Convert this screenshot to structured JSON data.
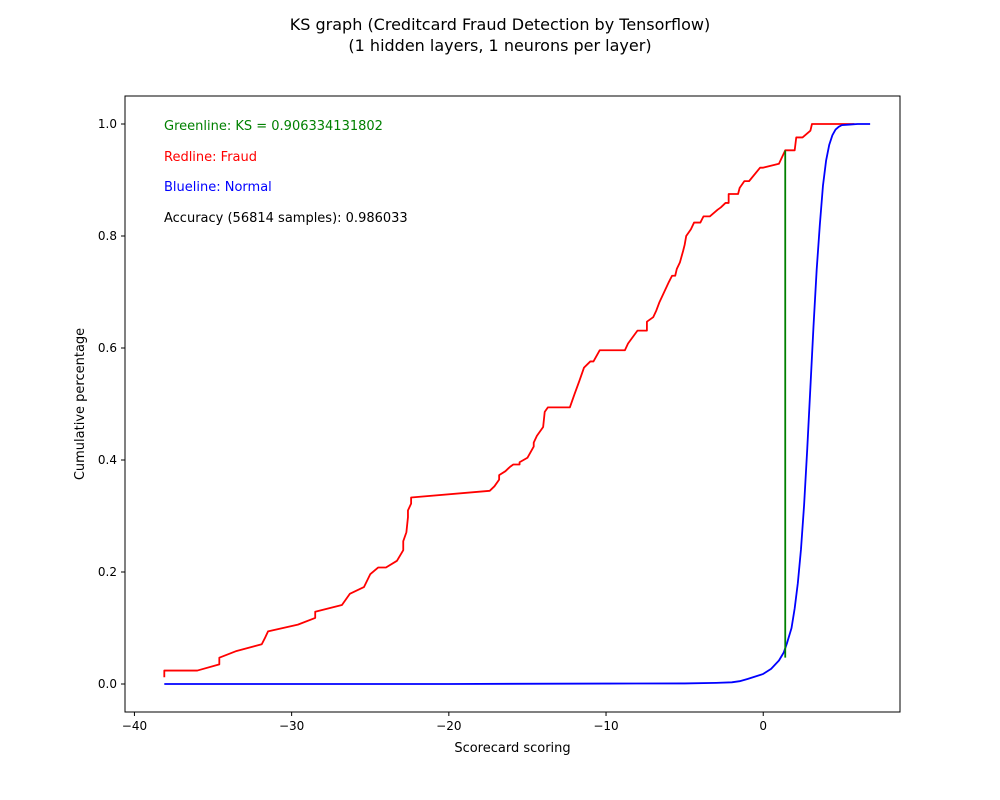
{
  "chart_data": {
    "type": "line",
    "title": "KS graph (Creditcard Fraud Detection by Tensorflow)",
    "subtitle": "(1 hidden layers, 1 neurons per layer)",
    "xlabel": "Scorecard scoring",
    "ylabel": "Cumulative percentage",
    "xlim": [
      -40.6,
      8.7
    ],
    "ylim": [
      -0.05,
      1.05
    ],
    "xticks": [
      -40,
      -30,
      -20,
      -10,
      0
    ],
    "xtick_labels": [
      "−40",
      "−30",
      "−20",
      "−10",
      "0"
    ],
    "yticks": [
      0.0,
      0.2,
      0.4,
      0.6,
      0.8,
      1.0
    ],
    "ytick_labels": [
      "0.0",
      "0.2",
      "0.4",
      "0.6",
      "0.8",
      "1.0"
    ],
    "grid": false,
    "annotations": [
      {
        "text": "Greenline: KS = 0.906334131802",
        "color": "#008000"
      },
      {
        "text": "Redline: Fraud",
        "color": "#ff0000"
      },
      {
        "text": "Blueline: Normal",
        "color": "#0000ff"
      },
      {
        "text": "Accuracy (56814 samples): 0.986033",
        "color": "#000000"
      }
    ],
    "series": [
      {
        "color": "#ff0000",
        "x": [
          -38.1,
          -38.1,
          -36,
          -34.6,
          -34.6,
          -33.5,
          -31.9,
          -31.7,
          -31.5,
          -29.6,
          -28.5,
          -28.5,
          -26.8,
          -26.3,
          -25.4,
          -25.0,
          -24.5,
          -24.0,
          -23.3,
          -22.9,
          -22.9,
          -22.7,
          -22.6,
          -22.6,
          -22.4,
          -22.4,
          -17.4,
          -17.1,
          -16.8,
          -16.8,
          -16.4,
          -16.1,
          -15.9,
          -15.5,
          -15.5,
          -15.0,
          -14.6,
          -14.6,
          -14.4,
          -14.0,
          -13.9,
          -13.7,
          -13.5,
          -13.5,
          -13.3,
          -12.3,
          -12.0,
          -11.7,
          -11.4,
          -11.0,
          -10.8,
          -10.4,
          -10.4,
          -8.8,
          -8.6,
          -8.0,
          -7.4,
          -7.4,
          -7.0,
          -6.8,
          -6.6,
          -6.4,
          -6.2,
          -6.0,
          -5.8,
          -5.6,
          -5.5,
          -5.3,
          -5.1,
          -5.0,
          -4.9,
          -4.8,
          -4.6,
          -4.4,
          -4.2,
          -4.0,
          -3.8,
          -3.6,
          -3.4,
          -3.4,
          -2.9,
          -2.7,
          -2.4,
          -2.2,
          -2.2,
          -1.6,
          -1.5,
          -1.2,
          -1.0,
          -0.9,
          -0.2,
          0.0,
          1.0,
          1.2,
          1.4,
          2.0,
          2.1,
          2.5,
          3.0,
          3.1,
          4.9,
          5.8
        ],
        "y": [
          0.012,
          0.024,
          0.024,
          0.035,
          0.047,
          0.059,
          0.071,
          0.082,
          0.094,
          0.106,
          0.118,
          0.129,
          0.141,
          0.161,
          0.173,
          0.196,
          0.208,
          0.208,
          0.22,
          0.239,
          0.255,
          0.271,
          0.298,
          0.31,
          0.322,
          0.333,
          0.345,
          0.353,
          0.365,
          0.373,
          0.38,
          0.388,
          0.392,
          0.392,
          0.396,
          0.404,
          0.424,
          0.431,
          0.443,
          0.459,
          0.486,
          0.494,
          0.494,
          0.494,
          0.494,
          0.494,
          0.518,
          0.541,
          0.565,
          0.576,
          0.576,
          0.596,
          0.596,
          0.596,
          0.608,
          0.631,
          0.631,
          0.647,
          0.655,
          0.667,
          0.682,
          0.694,
          0.706,
          0.718,
          0.729,
          0.729,
          0.741,
          0.753,
          0.773,
          0.784,
          0.8,
          0.804,
          0.812,
          0.824,
          0.824,
          0.824,
          0.835,
          0.835,
          0.835,
          0.835,
          0.847,
          0.851,
          0.859,
          0.859,
          0.875,
          0.875,
          0.886,
          0.898,
          0.898,
          0.898,
          0.922,
          0.922,
          0.929,
          0.941,
          0.953,
          0.953,
          0.976,
          0.976,
          0.988,
          1.0,
          1.0,
          1.0
        ]
      },
      {
        "color": "#0000ff",
        "x": [
          -38.1,
          -30,
          -20,
          -10,
          -5,
          -3,
          -2,
          -1.5,
          -1,
          0,
          0.5,
          1,
          1.3,
          1.5,
          1.8,
          2.0,
          2.2,
          2.4,
          2.6,
          2.8,
          3.0,
          3.2,
          3.4,
          3.6,
          3.8,
          4.0,
          4.2,
          4.4,
          4.6,
          4.8,
          5.0,
          5.5,
          6.0,
          6.8
        ],
        "y": [
          0.0,
          0.0,
          0.0,
          0.0008,
          0.001,
          0.002,
          0.003,
          0.005,
          0.009,
          0.018,
          0.027,
          0.042,
          0.056,
          0.072,
          0.1,
          0.135,
          0.18,
          0.24,
          0.32,
          0.42,
          0.53,
          0.64,
          0.74,
          0.82,
          0.89,
          0.935,
          0.963,
          0.98,
          0.99,
          0.995,
          0.998,
          0.999,
          1.0,
          1.0
        ]
      },
      {
        "color": "#008000",
        "x": [
          1.4,
          1.4
        ],
        "y": [
          0.047,
          0.953
        ]
      }
    ]
  }
}
